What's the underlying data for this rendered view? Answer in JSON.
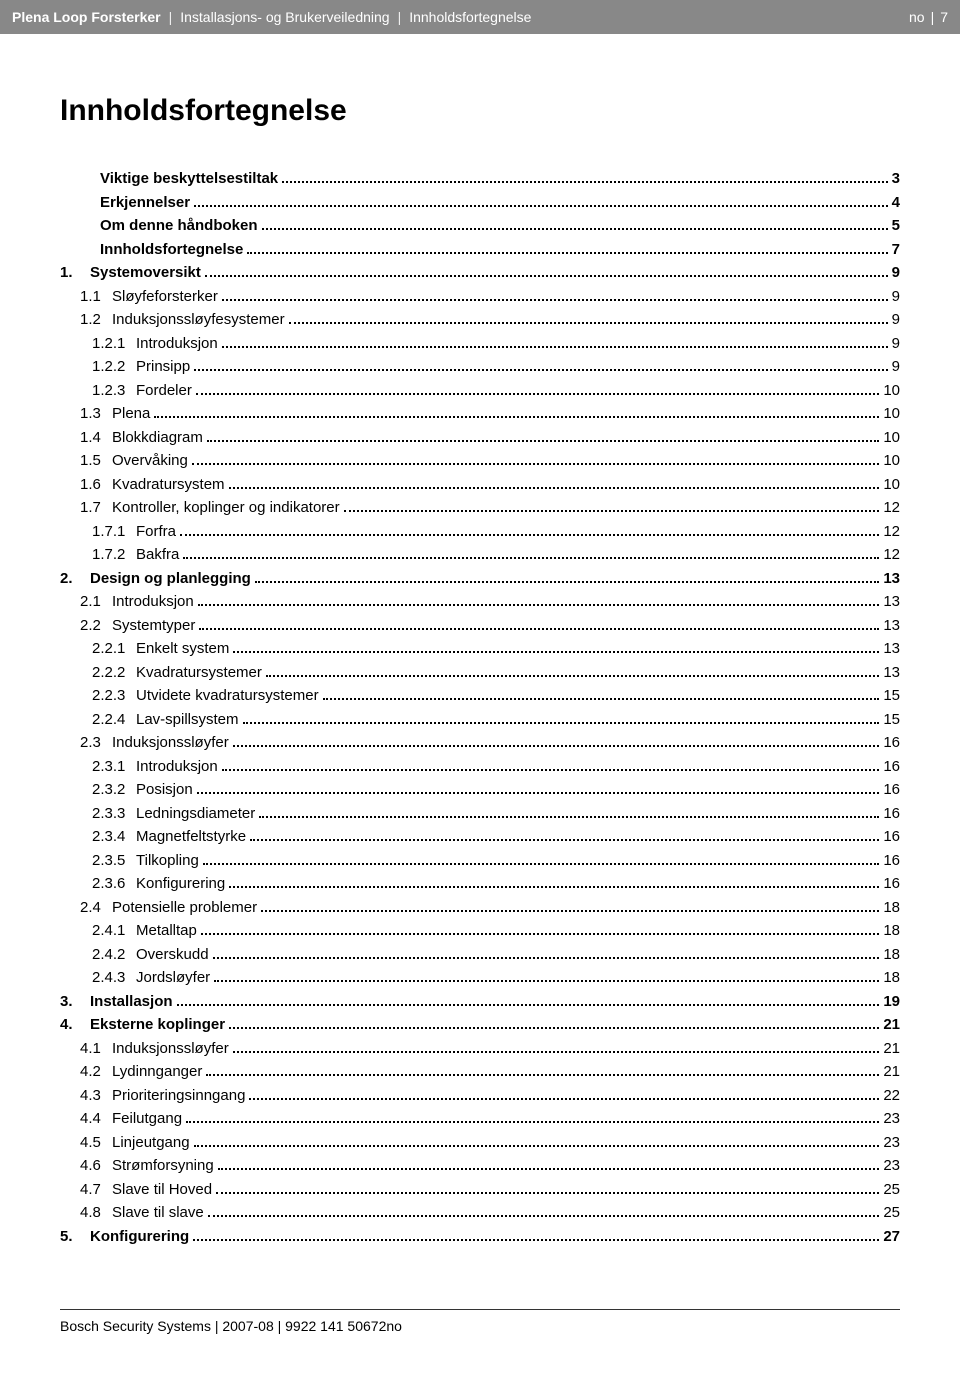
{
  "header": {
    "product": "Plena Loop Forsterker",
    "doc": "Installasjons- og Brukerveiledning",
    "section": "Innholdsfortegnelse",
    "lang": "no",
    "pagenum": "7"
  },
  "title": "Innholdsfortegnelse",
  "toc": [
    {
      "num": "",
      "title": "Viktige beskyttelsestiltak",
      "page": "3",
      "level": "front"
    },
    {
      "num": "",
      "title": "Erkjennelser",
      "page": "4",
      "level": "front"
    },
    {
      "num": "",
      "title": "Om denne håndboken",
      "page": "5",
      "level": "front"
    },
    {
      "num": "",
      "title": "Innholdsfortegnelse",
      "page": "7",
      "level": "front"
    },
    {
      "num": "1.",
      "title": "Systemoversikt",
      "page": "9",
      "level": "top"
    },
    {
      "num": "1.1",
      "title": "Sløyfeforsterker",
      "page": "9",
      "level": "sub"
    },
    {
      "num": "1.2",
      "title": "Induksjonssløyfesystemer",
      "page": "9",
      "level": "sub"
    },
    {
      "num": "1.2.1",
      "title": "Introduksjon",
      "page": "9",
      "level": "subsub"
    },
    {
      "num": "1.2.2",
      "title": "Prinsipp",
      "page": "9",
      "level": "subsub"
    },
    {
      "num": "1.2.3",
      "title": "Fordeler",
      "page": "10",
      "level": "subsub"
    },
    {
      "num": "1.3",
      "title": "Plena",
      "page": "10",
      "level": "sub"
    },
    {
      "num": "1.4",
      "title": "Blokkdiagram",
      "page": "10",
      "level": "sub"
    },
    {
      "num": "1.5",
      "title": "Overvåking",
      "page": "10",
      "level": "sub"
    },
    {
      "num": "1.6",
      "title": "Kvadratursystem",
      "page": "10",
      "level": "sub"
    },
    {
      "num": "1.7",
      "title": "Kontroller, koplinger og indikatorer",
      "page": "12",
      "level": "sub"
    },
    {
      "num": "1.7.1",
      "title": "Forfra",
      "page": "12",
      "level": "subsub"
    },
    {
      "num": "1.7.2",
      "title": "Bakfra",
      "page": "12",
      "level": "subsub"
    },
    {
      "num": "2.",
      "title": "Design og planlegging",
      "page": "13",
      "level": "top"
    },
    {
      "num": "2.1",
      "title": "Introduksjon",
      "page": "13",
      "level": "sub"
    },
    {
      "num": "2.2",
      "title": "Systemtyper",
      "page": "13",
      "level": "sub"
    },
    {
      "num": "2.2.1",
      "title": "Enkelt system",
      "page": "13",
      "level": "subsub"
    },
    {
      "num": "2.2.2",
      "title": "Kvadratursystemer",
      "page": "13",
      "level": "subsub"
    },
    {
      "num": "2.2.3",
      "title": "Utvidete kvadratursystemer",
      "page": "15",
      "level": "subsub"
    },
    {
      "num": "2.2.4",
      "title": "Lav-spillsystem",
      "page": "15",
      "level": "subsub"
    },
    {
      "num": "2.3",
      "title": "Induksjonssløyfer",
      "page": "16",
      "level": "sub"
    },
    {
      "num": "2.3.1",
      "title": "Introduksjon",
      "page": "16",
      "level": "subsub"
    },
    {
      "num": "2.3.2",
      "title": "Posisjon",
      "page": "16",
      "level": "subsub"
    },
    {
      "num": "2.3.3",
      "title": "Ledningsdiameter",
      "page": "16",
      "level": "subsub"
    },
    {
      "num": "2.3.4",
      "title": "Magnetfeltstyrke",
      "page": "16",
      "level": "subsub"
    },
    {
      "num": "2.3.5",
      "title": "Tilkopling",
      "page": "16",
      "level": "subsub"
    },
    {
      "num": "2.3.6",
      "title": "Konfigurering",
      "page": "16",
      "level": "subsub"
    },
    {
      "num": "2.4",
      "title": "Potensielle problemer",
      "page": "18",
      "level": "sub"
    },
    {
      "num": "2.4.1",
      "title": "Metalltap",
      "page": "18",
      "level": "subsub"
    },
    {
      "num": "2.4.2",
      "title": "Overskudd",
      "page": "18",
      "level": "subsub"
    },
    {
      "num": "2.4.3",
      "title": "Jordsløyfer",
      "page": "18",
      "level": "subsub"
    },
    {
      "num": "3.",
      "title": "Installasjon",
      "page": "19",
      "level": "top"
    },
    {
      "num": "4.",
      "title": "Eksterne koplinger",
      "page": "21",
      "level": "top"
    },
    {
      "num": "4.1",
      "title": "Induksjonssløyfer",
      "page": "21",
      "level": "sub"
    },
    {
      "num": "4.2",
      "title": "Lydinnganger",
      "page": "21",
      "level": "sub"
    },
    {
      "num": "4.3",
      "title": "Prioriteringsinngang",
      "page": "22",
      "level": "sub"
    },
    {
      "num": "4.4",
      "title": "Feilutgang",
      "page": "23",
      "level": "sub"
    },
    {
      "num": "4.5",
      "title": "Linjeutgang",
      "page": "23",
      "level": "sub"
    },
    {
      "num": "4.6",
      "title": "Strømforsyning",
      "page": "23",
      "level": "sub"
    },
    {
      "num": "4.7",
      "title": "Slave til Hoved",
      "page": "25",
      "level": "sub"
    },
    {
      "num": "4.8",
      "title": "Slave til slave",
      "page": "25",
      "level": "sub"
    },
    {
      "num": "5.",
      "title": "Konfigurering",
      "page": "27",
      "level": "top"
    }
  ],
  "footer": "Bosch Security Systems | 2007-08 | 9922 141 50672no"
}
